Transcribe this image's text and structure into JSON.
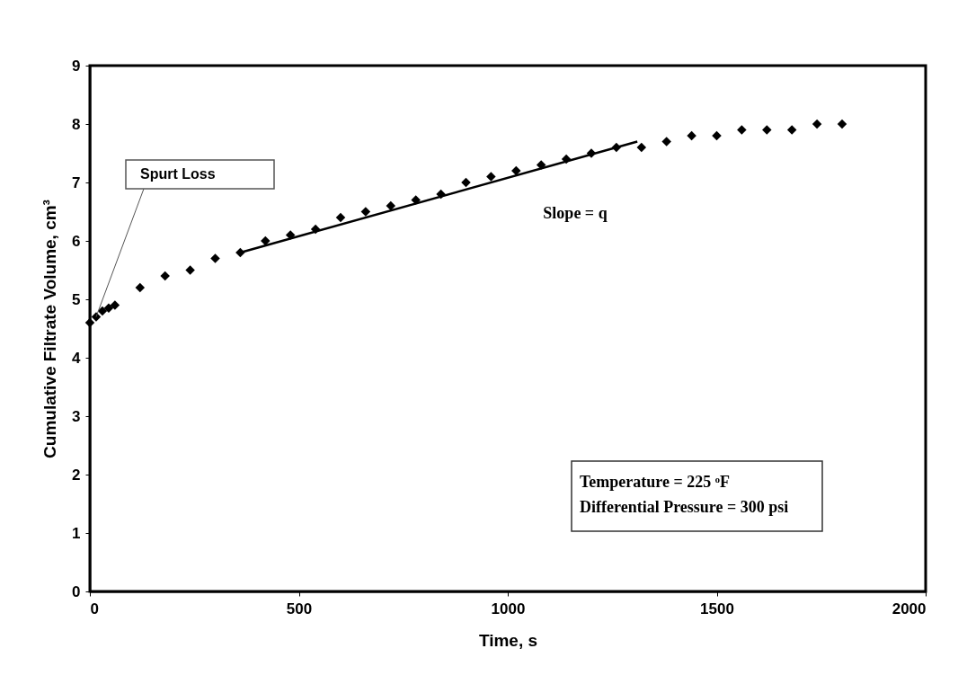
{
  "chart_data": {
    "type": "scatter",
    "xlabel": "Time, s",
    "ylabel": "Cumulative Filtrate Volume, cm³",
    "xlim": [
      0,
      2000
    ],
    "xticks": [
      0,
      500,
      1000,
      1500,
      2000
    ],
    "ylim": [
      0,
      9
    ],
    "yticks": [
      0,
      1,
      2,
      3,
      4,
      5,
      6,
      7,
      8,
      9
    ],
    "grid": false,
    "marker": "diamond",
    "series": [
      {
        "color": "#000000",
        "x": [
          0,
          15,
          30,
          45,
          60,
          120,
          180,
          240,
          300,
          360,
          420,
          480,
          540,
          600,
          660,
          720,
          780,
          840,
          900,
          960,
          1020,
          1080,
          1140,
          1200,
          1260,
          1320,
          1380,
          1440,
          1500,
          1560,
          1620,
          1680,
          1740,
          1800
        ],
        "values": [
          4.6,
          4.7,
          4.8,
          4.85,
          4.9,
          5.2,
          5.4,
          5.5,
          5.7,
          5.8,
          6.0,
          6.1,
          6.2,
          6.4,
          6.5,
          6.6,
          6.7,
          6.8,
          7.0,
          7.1,
          7.2,
          7.3,
          7.4,
          7.5,
          7.6,
          7.6,
          7.7,
          7.8,
          7.8,
          7.9,
          7.9,
          7.9,
          8.0,
          8.0
        ]
      },
      {
        "type": "line",
        "color": "#000000",
        "line_style": "solid",
        "marker": "none",
        "x": [
          360,
          1310
        ],
        "values": [
          5.8,
          7.7
        ]
      }
    ],
    "annotations": [
      {
        "text": "Spurt Loss",
        "x": 15,
        "y": 4.7
      },
      "Slope = q",
      "Temperature = 225 ᵒF",
      "Differential Pressure = 300 psi"
    ]
  }
}
